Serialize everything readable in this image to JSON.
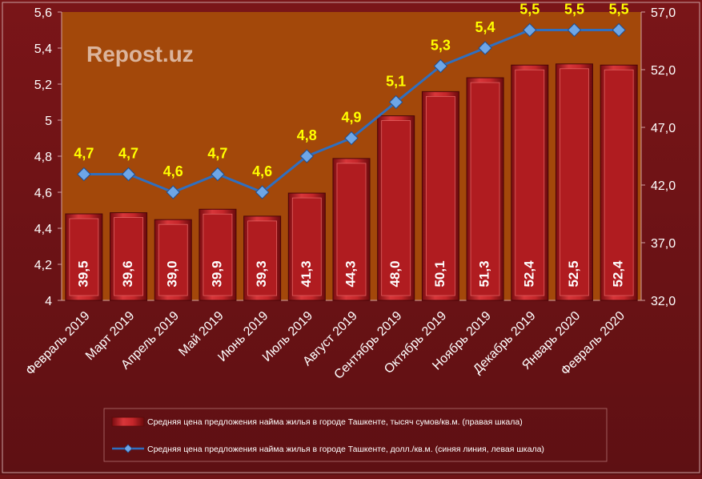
{
  "watermark": "Repost.uz",
  "colors": {
    "background": "#6e1316",
    "plot_background": "#a44a0a",
    "bar": "#b81e22",
    "line": "#2f6fc0",
    "marker": "#6ea6e6",
    "line_label": "#ffff00",
    "text": "#ffffff"
  },
  "chart_data": {
    "type": "bar",
    "categories": [
      "Февраль 2019",
      "Март 2019",
      "Апрель 2019",
      "Май 2019",
      "Июнь 2019",
      "Июль 2019",
      "Август 2019",
      "Сентябрь 2019",
      "Октябрь 2019",
      "Ноябрь 2019",
      "Декабрь 2019",
      "Январь 2020",
      "Февраль 2020"
    ],
    "series": [
      {
        "name": "Средняя цена предложения найма жилья в городе Ташкенте, тысяч сумов/кв.м. (правая шкала)",
        "type": "bar",
        "axis": "right",
        "values": [
          39.5,
          39.6,
          39.0,
          39.9,
          39.3,
          41.3,
          44.3,
          48.0,
          50.1,
          51.3,
          52.4,
          52.5,
          52.4
        ],
        "labels": [
          "39,5",
          "39,6",
          "39,0",
          "39,9",
          "39,3",
          "41,3",
          "44,3",
          "48,0",
          "50,1",
          "51,3",
          "52,4",
          "52,5",
          "52,4"
        ]
      },
      {
        "name": "Средняя цена предложения найма жилья в городе Ташкенте, долл./кв.м. (синяя линия, левая шкала)",
        "type": "line",
        "axis": "left",
        "values": [
          4.7,
          4.7,
          4.6,
          4.7,
          4.6,
          4.8,
          4.9,
          5.1,
          5.3,
          5.4,
          5.5,
          5.5,
          5.5
        ],
        "labels": [
          "4,7",
          "4,7",
          "4,6",
          "4,7",
          "4,6",
          "4,8",
          "4,9",
          "5,1",
          "5,3",
          "5,4",
          "5,5",
          "5,5",
          "5,5"
        ]
      }
    ],
    "left_axis": {
      "min": 4,
      "max": 5.6,
      "ticks": [
        4,
        4.2,
        4.4,
        4.6,
        4.8,
        5,
        5.2,
        5.4,
        5.6
      ],
      "tick_labels": [
        "4",
        "4,2",
        "4,4",
        "4,6",
        "4,8",
        "5",
        "5,2",
        "5,4",
        "5,6"
      ]
    },
    "right_axis": {
      "min": 32,
      "max": 57,
      "ticks": [
        32,
        37,
        42,
        47,
        52,
        57
      ],
      "tick_labels": [
        "32,0",
        "37,0",
        "42,0",
        "47,0",
        "52,0",
        "57,0"
      ]
    },
    "grid": false,
    "legend_position": "bottom"
  }
}
